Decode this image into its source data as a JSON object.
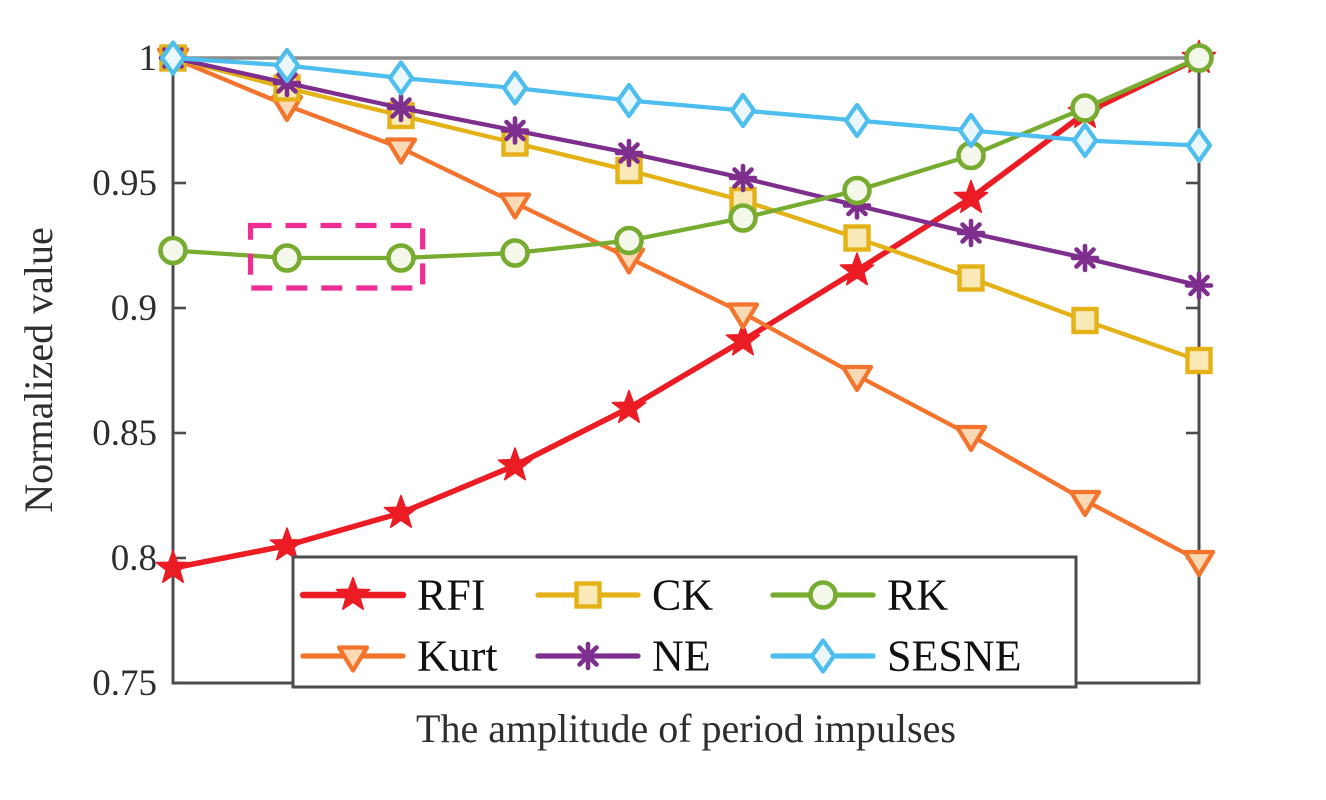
{
  "chart_data": {
    "type": "line",
    "title": "",
    "xlabel": "The amplitude of period impulses",
    "ylabel": "Normalized value",
    "xlim": [
      1,
      10
    ],
    "ylim": [
      0.75,
      1.0
    ],
    "x": [
      1,
      2,
      3,
      4,
      5,
      6,
      7,
      8,
      9,
      10
    ],
    "yticks": [
      1,
      0.95,
      0.9,
      0.85,
      0.8,
      0.75
    ],
    "ytick_labels": [
      "1",
      "0.95",
      "0.9",
      "0.85",
      "0.8",
      "0.75"
    ],
    "xtick_labels_shown": false,
    "grid": false,
    "axis_color": "#4c4c4c",
    "top_edge_color": "#8c8c8c",
    "text_color": "#2e2e2e",
    "series": [
      {
        "name": "RFI",
        "color": "#ec1c24",
        "marker": "star",
        "marker_fill": "#ec1c24",
        "values": [
          0.796,
          0.805,
          0.818,
          0.837,
          0.86,
          0.887,
          0.915,
          0.944,
          0.978,
          1.0
        ]
      },
      {
        "name": "Kurt",
        "color": "#f4742e",
        "marker": "triangle-down",
        "marker_fill": "#fcd9b5",
        "values": [
          1.0,
          0.981,
          0.964,
          0.942,
          0.92,
          0.898,
          0.873,
          0.849,
          0.823,
          0.799
        ]
      },
      {
        "name": "CK",
        "color": "#e4b117",
        "marker": "square",
        "marker_fill": "#f8e9b6",
        "values": [
          1.0,
          0.988,
          0.977,
          0.966,
          0.955,
          0.943,
          0.928,
          0.912,
          0.895,
          0.879
        ]
      },
      {
        "name": "NE",
        "color": "#7e2f8e",
        "marker": "asterisk",
        "marker_fill": "#7e2f8e",
        "values": [
          1.0,
          0.99,
          0.98,
          0.971,
          0.962,
          0.952,
          0.941,
          0.93,
          0.92,
          0.909
        ]
      },
      {
        "name": "RK",
        "color": "#77ac30",
        "marker": "circle",
        "marker_fill": "#f3f8ea",
        "values": [
          0.923,
          0.92,
          0.92,
          0.922,
          0.927,
          0.936,
          0.947,
          0.961,
          0.98,
          1.0
        ]
      },
      {
        "name": "SESNE",
        "color": "#4dbeee",
        "marker": "diamond",
        "marker_fill": "#eaf8fe",
        "values": [
          1.0,
          0.997,
          0.992,
          0.988,
          0.983,
          0.979,
          0.975,
          0.971,
          0.967,
          0.965
        ]
      }
    ],
    "legend": {
      "position": "bottom-center-inside",
      "rows": [
        [
          "RFI",
          "CK",
          "RK"
        ],
        [
          "Kurt",
          "NE",
          "SESNE"
        ]
      ]
    },
    "annotation_box": {
      "style": "dashed",
      "color": "#ee2d94",
      "x0": 1.68,
      "x1": 3.19,
      "y0": 0.908,
      "y1": 0.933,
      "note": "highlights the flat dip of the RK curve at its 2nd and 3rd points"
    }
  }
}
